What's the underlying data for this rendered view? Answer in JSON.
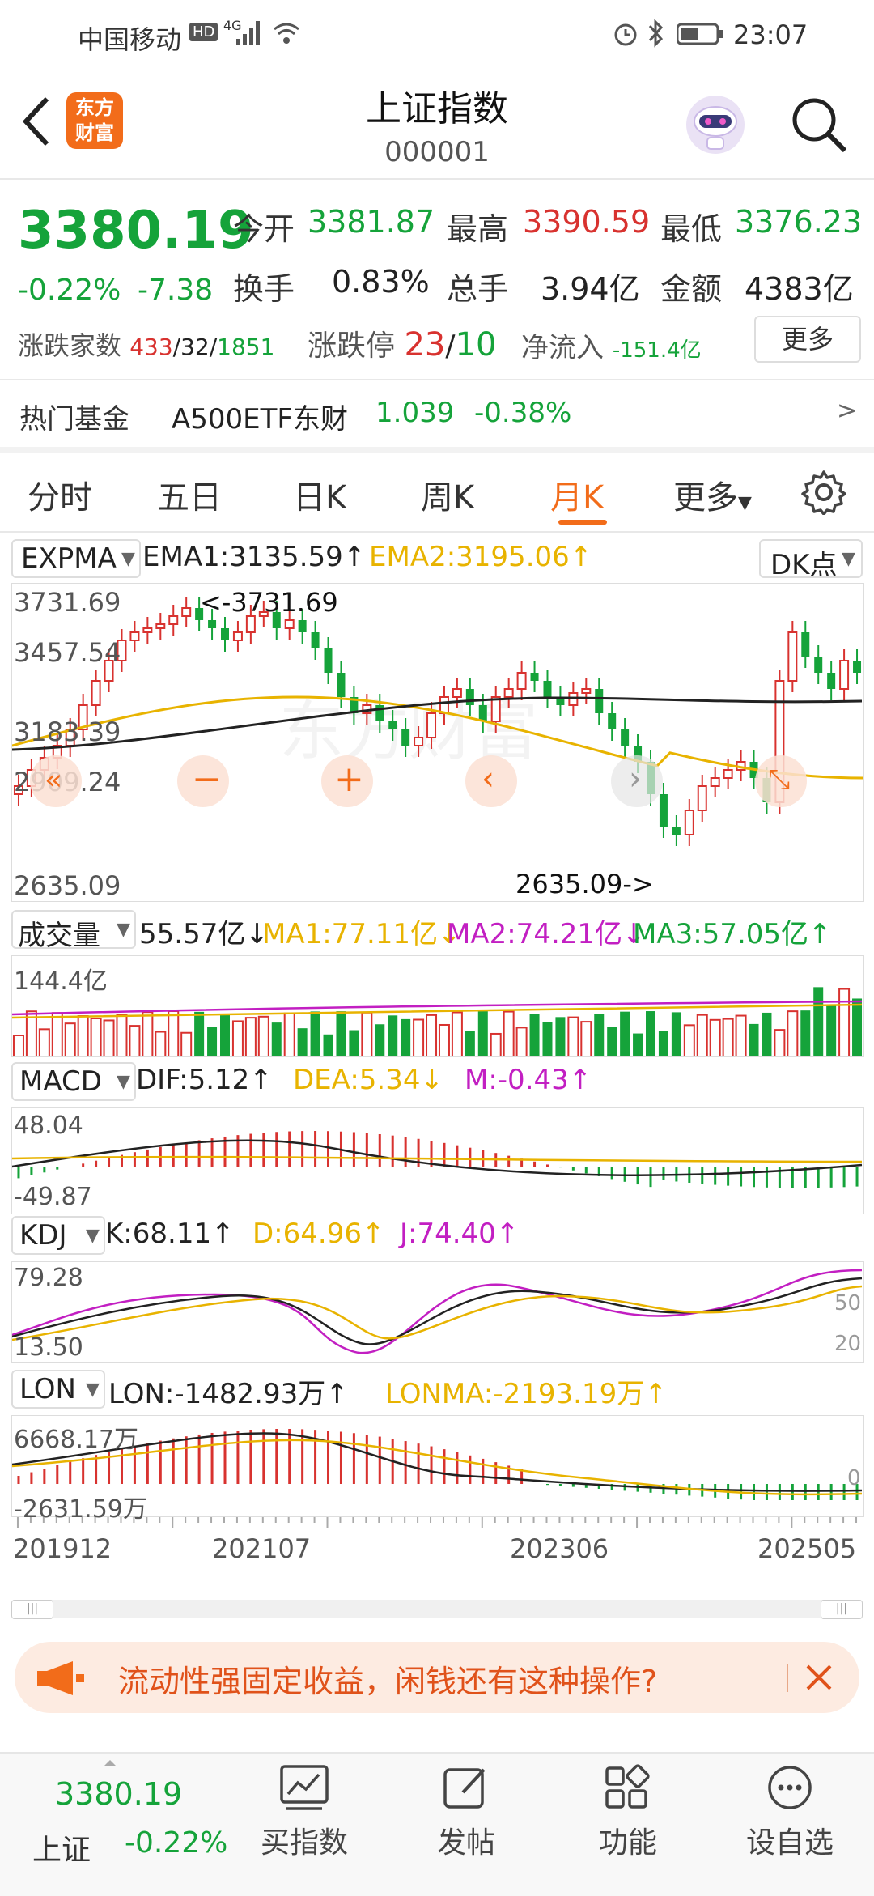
{
  "status": {
    "carrier": "中国移动",
    "hd": "HD",
    "signal": "4G",
    "time": "23:07"
  },
  "header": {
    "title": "上证指数",
    "code": "000001",
    "logo_line1": "东方",
    "logo_line2": "财富"
  },
  "quote": {
    "price": "3380.19",
    "change_pct": "-0.22%",
    "change": "-7.38",
    "open_label": "今开",
    "open": "3381.87",
    "high_label": "最高",
    "high": "3390.59",
    "low_label": "最低",
    "low": "3376.23",
    "turnover_label": "换手",
    "turnover": "0.83%",
    "volume_label": "总手",
    "volume": "3.94亿",
    "amount_label": "金额",
    "amount": "4383亿",
    "updown_label": "涨跌家数",
    "up_count": "433",
    "flat_count": "32",
    "down_count": "1851",
    "limit_label": "涨跌停",
    "limit_up": "23",
    "limit_down": "10",
    "netflow_label": "净流入",
    "netflow": "-151.4亿",
    "more_button": "更多"
  },
  "fund": {
    "label": "热门基金",
    "name": "A500ETF东财",
    "price": "1.039",
    "change": "-0.38%",
    "arrow": ">"
  },
  "tabs": [
    "分时",
    "五日",
    "日K",
    "周K",
    "月K",
    "更多"
  ],
  "active_tab": 4,
  "kline": {
    "indicator": "EXPMA",
    "ema1": "EMA1:3135.59↑",
    "ema2": "EMA2:3195.06↑",
    "dk_button": "DK点",
    "y_labels": [
      "3731.69",
      "3457.54",
      "3183.39",
      "2909.24",
      "2635.09"
    ],
    "max_label": "<-3731.69",
    "min_label": "2635.09->",
    "watermark": "东方财富"
  },
  "volume_panel": {
    "name": "成交量",
    "value": "55.57亿↓",
    "ma1": "MA1:77.11亿↓",
    "ma2": "MA2:74.21亿↓",
    "ma3": "MA3:57.05亿↑",
    "y_top": "144.4亿"
  },
  "macd_panel": {
    "name": "MACD",
    "dif": "DIF:5.12↑",
    "dea": "DEA:5.34↓",
    "m": "M:-0.43↑",
    "y_top": "48.04",
    "y_bottom": "-49.87"
  },
  "kdj_panel": {
    "name": "KDJ",
    "k": "K:68.11↑",
    "d": "D:64.96↑",
    "j": "J:74.40↑",
    "y_top": "79.28",
    "y_bottom": "13.50",
    "right_50": "50",
    "right_20": "20"
  },
  "lon_panel": {
    "name": "LON",
    "lon": "LON:-1482.93万↑",
    "lonma": "LONMA:-2193.19万↑",
    "y_top": "6668.17万",
    "y_bottom": "-2631.59万",
    "right_zero": "0"
  },
  "x_axis": [
    "201912",
    "202107",
    "202306",
    "202505"
  ],
  "ad": {
    "text": "流动性强固定收益，闲钱还有这种操作?"
  },
  "bottom": {
    "price": "3380.19",
    "name": "上证",
    "change": "-0.22%",
    "items": [
      "买指数",
      "发帖",
      "功能",
      "设自选"
    ]
  },
  "colors": {
    "up": "#d8322f",
    "down": "#15a33a",
    "accent": "#f26c1a",
    "ema2": "#e8b300",
    "ma2": "#c21fc2"
  }
}
